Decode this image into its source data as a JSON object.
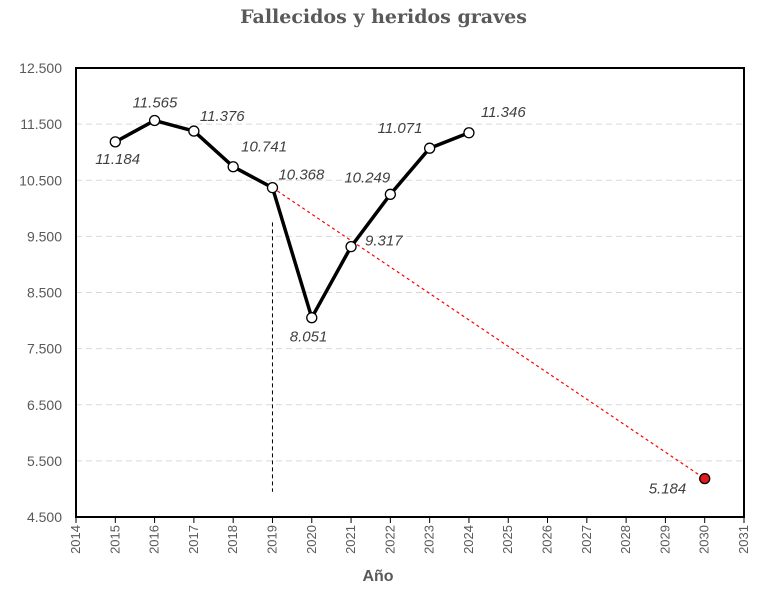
{
  "chart_data": {
    "type": "line",
    "title": "Fallecidos y heridos graves",
    "xlabel": "Año",
    "ylabel": "",
    "xlim": [
      2014,
      2031
    ],
    "ylim": [
      4500,
      12500
    ],
    "x_ticks": [
      "2014",
      "2015",
      "2016",
      "2017",
      "2018",
      "2019",
      "2020",
      "2021",
      "2022",
      "2023",
      "2024",
      "2025",
      "2026",
      "2027",
      "2028",
      "2029",
      "2030",
      "2031"
    ],
    "y_ticks": [
      "4.500",
      "5.500",
      "6.500",
      "7.500",
      "8.500",
      "9.500",
      "10.500",
      "11.500",
      "12.500"
    ],
    "grid": "horizontal dashed",
    "series": [
      {
        "x": [
          2015,
          2016,
          2017,
          2018,
          2019,
          2020,
          2021,
          2022,
          2023,
          2024
        ],
        "values": [
          11184,
          11565,
          11376,
          10741,
          10368,
          8051,
          9317,
          10249,
          11071,
          11346
        ],
        "labels": [
          "11.184",
          "11.565",
          "11.376",
          "10.741",
          "10.368",
          "8.051",
          "9.317",
          "10.249",
          "11.071",
          "11.346"
        ],
        "color": "#000000",
        "marker": "open-circle"
      }
    ],
    "target": {
      "x": 2030,
      "value": 5184,
      "label": "5.184",
      "color": "#ff0000",
      "marker_fill": "#e31a1c",
      "line_from": {
        "x": 2019,
        "value": 10368
      },
      "line_style": "dashed"
    },
    "reference_line": {
      "x": 2019,
      "style": "dashed",
      "color": "#000000",
      "from_value": 4950,
      "to_value": 9750
    }
  }
}
